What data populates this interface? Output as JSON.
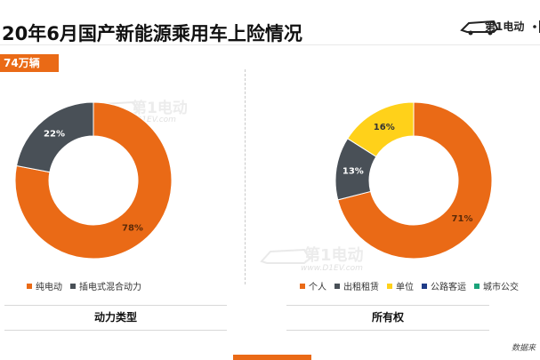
{
  "header": {
    "title": "20年6月国产新能源乘用车上险情况",
    "badge": "74万辆",
    "logo_text": "第1电动"
  },
  "watermark": {
    "text": "第1电动",
    "url": "www.D1EV.com"
  },
  "footer": {
    "source": "数据来"
  },
  "colors": {
    "orange": "#ea6a16",
    "dark_gray": "#495057",
    "yellow": "#ffd11a",
    "navy": "#1f3c88",
    "teal": "#1aa37a"
  },
  "chart_data": [
    {
      "type": "pie",
      "variant": "donut",
      "caption": "动力类型",
      "categories": [
        "纯电动",
        "插电式混合动力"
      ],
      "values": [
        78,
        22
      ],
      "labels": [
        "78%",
        "22%"
      ],
      "colors": [
        "#ea6a16",
        "#495057"
      ],
      "legend_position": "bottom"
    },
    {
      "type": "pie",
      "variant": "donut",
      "caption": "所有权",
      "categories": [
        "个人",
        "出租租赁",
        "单位",
        "公路客运",
        "城市公交"
      ],
      "values": [
        71,
        13,
        16,
        0,
        0
      ],
      "labels": [
        "71%",
        "13%",
        "16%",
        "",
        ""
      ],
      "colors": [
        "#ea6a16",
        "#495057",
        "#ffd11a",
        "#1f3c88",
        "#1aa37a"
      ],
      "legend_position": "bottom"
    }
  ]
}
